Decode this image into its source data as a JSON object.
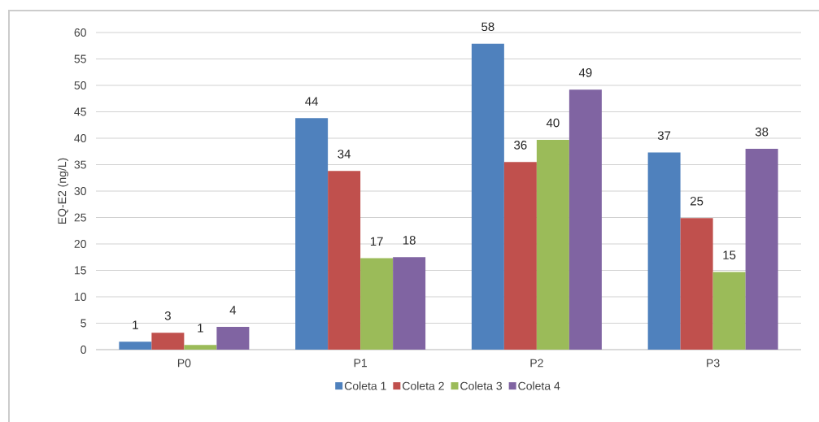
{
  "chart_data": {
    "type": "bar",
    "ylabel": "EQ-E2 (ng/L)",
    "categories": [
      "P0",
      "P1",
      "P2",
      "P3"
    ],
    "series": [
      {
        "name": "Coleta 1",
        "color": "#4f81bd",
        "values": [
          1.5,
          43.8,
          57.9,
          37.3
        ],
        "value_labels": [
          "1",
          "44",
          "58",
          "37"
        ]
      },
      {
        "name": "Coleta 2",
        "color": "#c0504d",
        "values": [
          3.2,
          33.8,
          35.5,
          24.9
        ],
        "value_labels": [
          "3",
          "34",
          "36",
          "25"
        ]
      },
      {
        "name": "Coleta 3",
        "color": "#9bbb59",
        "values": [
          0.9,
          17.3,
          39.7,
          14.7
        ],
        "value_labels": [
          "1",
          "17",
          "40",
          "15"
        ]
      },
      {
        "name": "Coleta 4",
        "color": "#8064a2",
        "values": [
          4.3,
          17.5,
          49.2,
          38.0
        ],
        "value_labels": [
          "4",
          "18",
          "49",
          "38"
        ]
      }
    ],
    "ylim": [
      0,
      60
    ],
    "yticks": [
      0,
      5,
      10,
      15,
      20,
      25,
      30,
      35,
      40,
      45,
      50,
      55,
      60
    ],
    "grid": "y",
    "legend": "bottom"
  }
}
